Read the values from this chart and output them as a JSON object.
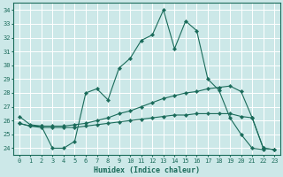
{
  "xlabel": "Humidex (Indice chaleur)",
  "bg_color": "#cce8e8",
  "grid_color": "#b0d8d8",
  "line_color": "#1a6b5a",
  "xlim": [
    -0.5,
    23.5
  ],
  "ylim": [
    23.5,
    34.5
  ],
  "xticks": [
    0,
    1,
    2,
    3,
    4,
    5,
    6,
    7,
    8,
    9,
    10,
    11,
    12,
    13,
    14,
    15,
    16,
    17,
    18,
    19,
    20,
    21,
    22,
    23
  ],
  "yticks": [
    24,
    25,
    26,
    27,
    28,
    29,
    30,
    31,
    32,
    33,
    34
  ],
  "series1_x": [
    0,
    1,
    2,
    3,
    4,
    5,
    6,
    7,
    8,
    9,
    10,
    11,
    12,
    13,
    14,
    15,
    16,
    17,
    18,
    19,
    20,
    21,
    22
  ],
  "series1_y": [
    26.3,
    25.7,
    25.6,
    24.0,
    24.0,
    24.5,
    28.0,
    28.3,
    27.5,
    29.8,
    30.5,
    31.8,
    32.2,
    34.0,
    31.2,
    33.2,
    32.5,
    29.0,
    28.2,
    26.2,
    25.0,
    24.0,
    23.9
  ],
  "series2_x": [
    0,
    1,
    2,
    3,
    4,
    5,
    6,
    7,
    8,
    9,
    10,
    11,
    12,
    13,
    14,
    15,
    16,
    17,
    18,
    19,
    20,
    21,
    22,
    23
  ],
  "series2_y": [
    25.8,
    25.6,
    25.6,
    25.6,
    25.6,
    25.7,
    25.8,
    26.0,
    26.2,
    26.5,
    26.7,
    27.0,
    27.3,
    27.6,
    27.8,
    28.0,
    28.1,
    28.3,
    28.4,
    28.5,
    28.1,
    26.2,
    24.0,
    23.9
  ],
  "series3_x": [
    0,
    1,
    2,
    3,
    4,
    5,
    6,
    7,
    8,
    9,
    10,
    11,
    12,
    13,
    14,
    15,
    16,
    17,
    18,
    19,
    20,
    21,
    22,
    23
  ],
  "series3_y": [
    25.8,
    25.6,
    25.5,
    25.5,
    25.5,
    25.5,
    25.6,
    25.7,
    25.8,
    25.9,
    26.0,
    26.1,
    26.2,
    26.3,
    26.4,
    26.4,
    26.5,
    26.5,
    26.5,
    26.5,
    26.3,
    26.2,
    24.0,
    23.9
  ]
}
